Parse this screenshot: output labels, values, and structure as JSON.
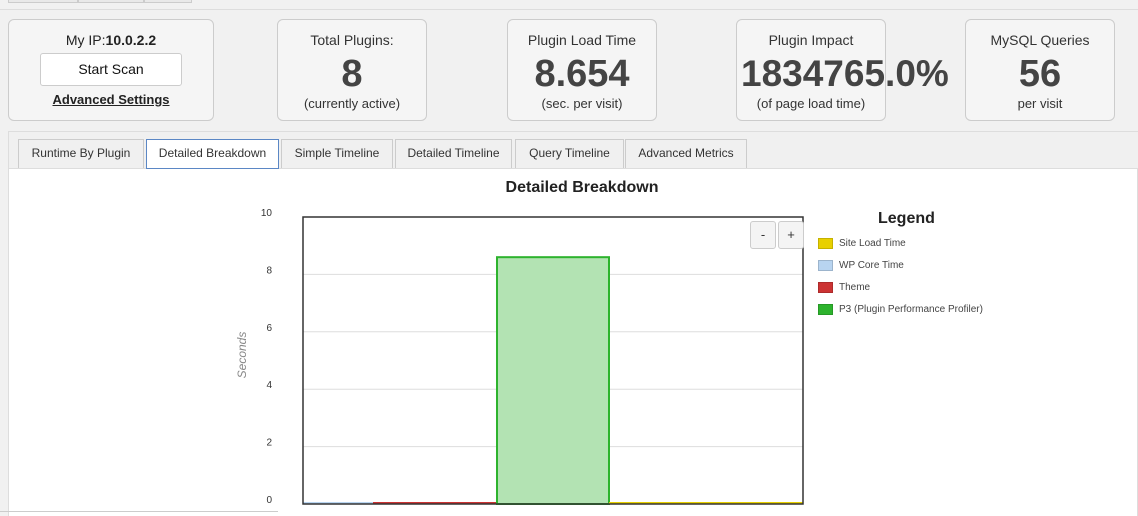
{
  "ip_box": {
    "label": "My IP:",
    "ip": "10.0.2.2",
    "scan_button": "Start Scan",
    "advanced_link": "Advanced Settings"
  },
  "stats": [
    {
      "label": "Total Plugins:",
      "value": "8",
      "sub": "(currently active)"
    },
    {
      "label": "Plugin Load Time",
      "value": "8.654",
      "sub": "(sec. per visit)"
    },
    {
      "label": "Plugin Impact",
      "value": "1834765.0%",
      "sub": "(of page load time)"
    },
    {
      "label": "MySQL Queries",
      "value": "56",
      "sub": "per visit"
    }
  ],
  "tabs": [
    "Runtime By Plugin",
    "Detailed Breakdown",
    "Simple Timeline",
    "Detailed Timeline",
    "Query Timeline",
    "Advanced Metrics"
  ],
  "active_tab": "Detailed Breakdown",
  "zoom": {
    "minus": "-",
    "plus": "+"
  },
  "legend_title": "Legend",
  "chart_data": {
    "type": "bar",
    "title": "Detailed Breakdown",
    "ylabel": "Seconds",
    "xlabel": "",
    "ylim": [
      0,
      10
    ],
    "yticks": [
      0,
      2,
      4,
      6,
      8,
      10
    ],
    "grid": true,
    "legend_placement": "right",
    "series": [
      {
        "name": "Site Load Time",
        "color": "#e8d000",
        "values": [
          0.0004,
          0,
          0,
          0.0004
        ]
      },
      {
        "name": "WP Core Time",
        "color": "#b8d4f0",
        "values": [
          0.0003,
          0,
          0,
          0
        ]
      },
      {
        "name": "Theme",
        "color": "#cc3333",
        "values": [
          0,
          0.0002,
          0,
          0
        ]
      },
      {
        "name": "P3 (Plugin Performance Profiler)",
        "color": "#2db32d",
        "values": [
          0,
          0,
          8.6,
          0
        ]
      }
    ]
  }
}
